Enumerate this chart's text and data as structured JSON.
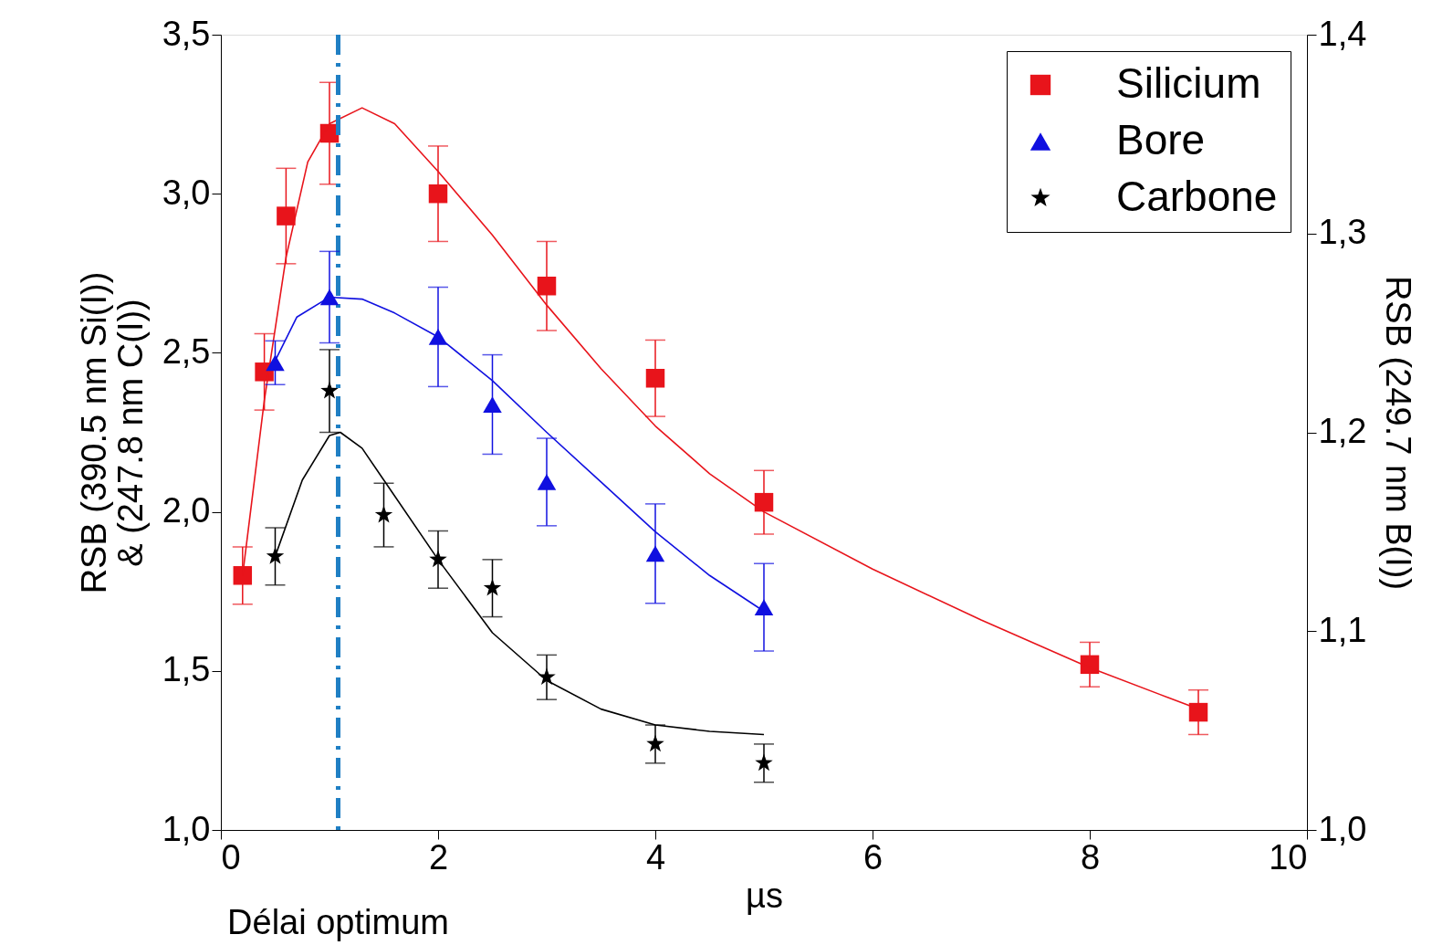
{
  "chart_data": {
    "type": "scatter",
    "xlabel": "µs",
    "ylabel": "RSB (390.5 nm Si(I))\n& (247.8 nm C(I))",
    "y2label": "RSB (249.7 nm B(I))",
    "xlim": [
      0,
      10
    ],
    "xticks": [
      0,
      2,
      4,
      6,
      8,
      10
    ],
    "ylim": [
      1.0,
      3.5
    ],
    "yticks": [
      {
        "value": 1.0,
        "label": "1,0"
      },
      {
        "value": 1.5,
        "label": "1,5"
      },
      {
        "value": 2.0,
        "label": "2,0"
      },
      {
        "value": 2.5,
        "label": "2,5"
      },
      {
        "value": 3.0,
        "label": "3,0"
      },
      {
        "value": 3.5,
        "label": "3,5"
      }
    ],
    "y2lim": [
      1.0,
      1.4
    ],
    "y2ticks": [
      {
        "value": 1.0,
        "label": "1,0"
      },
      {
        "value": 1.1,
        "label": "1,1"
      },
      {
        "value": 1.2,
        "label": "1,2"
      },
      {
        "value": 1.3,
        "label": "1,3"
      },
      {
        "value": 1.4,
        "label": "1,4"
      }
    ],
    "grid": false,
    "legend": "top right",
    "ref_lines": [
      {
        "axis": "x",
        "value": 1.08,
        "label": "Délai optimum",
        "color": "#1f7fc4",
        "line_style": "dashed"
      }
    ],
    "series": [
      {
        "name": "Silicium",
        "marker": "square",
        "color": "#e8141b",
        "x": [
          0.2,
          0.4,
          0.6,
          1.0,
          2,
          3,
          4,
          5,
          8,
          9
        ],
        "values": [
          1.8,
          2.44,
          2.93,
          3.19,
          3.0,
          2.71,
          2.42,
          2.03,
          1.52,
          1.37
        ],
        "errors": [
          0.09,
          0.12,
          0.15,
          0.16,
          0.15,
          0.14,
          0.12,
          0.1,
          0.07,
          0.07
        ]
      },
      {
        "name": "Bore",
        "marker": "triangle",
        "axis": "y2",
        "color": "#1010e0",
        "x": [
          0.5,
          1.0,
          2,
          2.5,
          3,
          4,
          5
        ],
        "values": [
          1.235,
          1.268,
          1.248,
          1.214,
          1.175,
          1.139,
          1.112
        ],
        "errors": [
          0.011,
          0.023,
          0.025,
          0.025,
          0.022,
          0.025,
          0.022
        ]
      },
      {
        "name": "Carbone",
        "marker": "star",
        "color": "#000000",
        "x": [
          0.5,
          1.0,
          1.5,
          2,
          2.5,
          3,
          4,
          5
        ],
        "values": [
          1.86,
          2.38,
          1.99,
          1.85,
          1.76,
          1.48,
          1.27,
          1.21
        ],
        "errors": [
          0.09,
          0.13,
          0.1,
          0.09,
          0.09,
          0.07,
          0.06,
          0.06
        ]
      },
      {
        "type": "line",
        "color": "#e8141b",
        "x": [
          0.2,
          0.4,
          0.6,
          0.8,
          1.0,
          1.3,
          1.6,
          2,
          2.5,
          3,
          3.5,
          4,
          4.5,
          5,
          6,
          7,
          8,
          9
        ],
        "values": [
          1.8,
          2.35,
          2.8,
          3.1,
          3.22,
          3.27,
          3.22,
          3.07,
          2.87,
          2.65,
          2.45,
          2.27,
          2.12,
          2.0,
          1.82,
          1.66,
          1.51,
          1.38
        ]
      },
      {
        "type": "line",
        "axis": "y2",
        "color": "#1010e0",
        "x": [
          0.5,
          0.7,
          1.0,
          1.3,
          1.6,
          2,
          2.5,
          3,
          3.5,
          4,
          4.5,
          5
        ],
        "values": [
          1.236,
          1.258,
          1.268,
          1.267,
          1.26,
          1.248,
          1.226,
          1.2,
          1.175,
          1.15,
          1.128,
          1.11
        ]
      },
      {
        "type": "line",
        "color": "#000000",
        "x": [
          0.5,
          0.75,
          1.0,
          1.1,
          1.3,
          1.5,
          2,
          2.5,
          3,
          3.5,
          4,
          4.5,
          5
        ],
        "values": [
          1.86,
          2.1,
          2.24,
          2.25,
          2.2,
          2.1,
          1.85,
          1.62,
          1.47,
          1.38,
          1.33,
          1.31,
          1.3
        ]
      }
    ]
  }
}
